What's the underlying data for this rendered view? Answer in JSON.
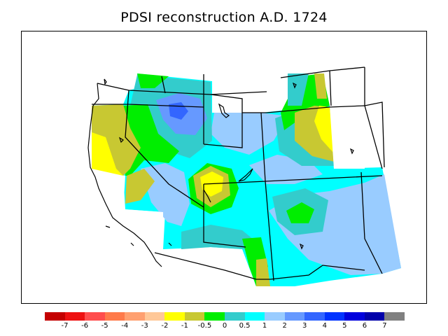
{
  "title": "PDSI reconstruction A.D. 1724",
  "legend": {
    "colors": [
      "#c40000",
      "#ee1111",
      "#ff4d4d",
      "#ff7a4a",
      "#ffa070",
      "#ffc898",
      "#ffff00",
      "#c8c832",
      "#00ee00",
      "#33cccc",
      "#00ffff",
      "#99ccff",
      "#6699ff",
      "#3366ff",
      "#0033ff",
      "#0000dd",
      "#0000aa",
      "#808080"
    ],
    "labels": [
      "-7",
      "-6",
      "-5",
      "-4",
      "-3",
      "-2",
      "-1",
      "-0.5",
      "0",
      "0.5",
      "1",
      "2",
      "3",
      "4",
      "5",
      "6",
      "7"
    ]
  },
  "palette": {
    "yellow": "#ffff00",
    "olive": "#c8c832",
    "green": "#00ee00",
    "teal": "#33cccc",
    "cyan": "#00ffff",
    "lightblue": "#99ccff",
    "midblue": "#6699ff",
    "blue": "#3366ff"
  }
}
